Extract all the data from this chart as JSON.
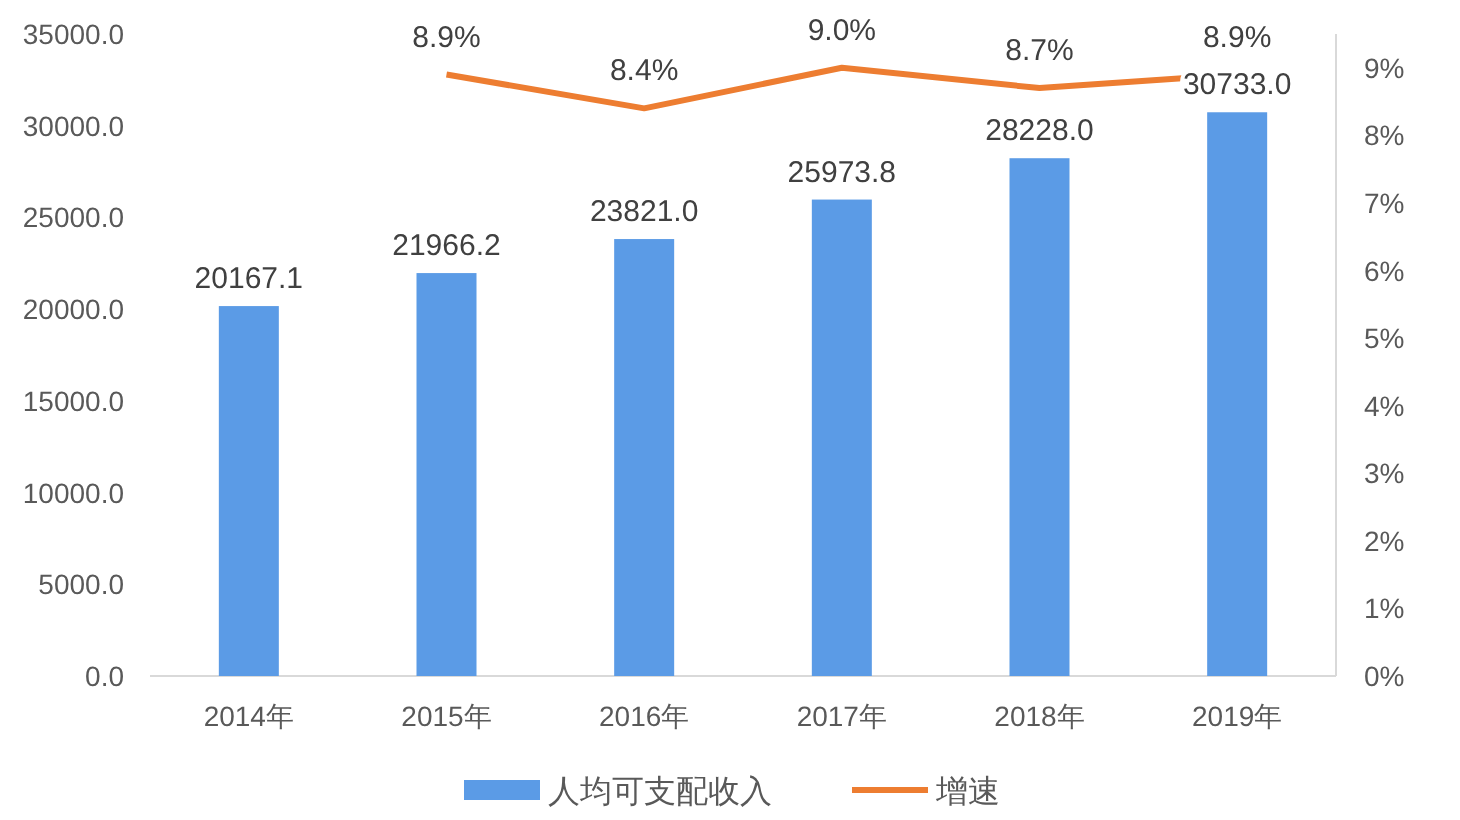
{
  "chart_data": {
    "type": "bar",
    "categories": [
      "2014年",
      "2015年",
      "2016年",
      "2017年",
      "2018年",
      "2019年"
    ],
    "series": [
      {
        "name": "人均可支配收入",
        "color": "#5b9be6",
        "values": [
          20167.1,
          21966.2,
          23821.0,
          25973.8,
          28228.0,
          30733.0
        ],
        "value_labels": [
          "20167.1",
          "21966.2",
          "23821.0",
          "25973.8",
          "28228.0",
          "30733.0"
        ]
      },
      {
        "name": "增速",
        "type": "line",
        "axis": "y2",
        "color": "#ed7d31",
        "marker": "none",
        "values": [
          null,
          8.9,
          8.4,
          9.0,
          8.7,
          8.9
        ],
        "value_labels": [
          null,
          "8.9%",
          "8.4%",
          "9.0%",
          "8.7%",
          "8.9%"
        ]
      }
    ],
    "ylim": [
      0,
      35000
    ],
    "yticks": [
      {
        "value": 0,
        "label": "0.0"
      },
      {
        "value": 5000,
        "label": "5000.0"
      },
      {
        "value": 10000,
        "label": "10000.0"
      },
      {
        "value": 15000,
        "label": "15000.0"
      },
      {
        "value": 20000,
        "label": "20000.0"
      },
      {
        "value": 25000,
        "label": "25000.0"
      },
      {
        "value": 30000,
        "label": "30000.0"
      },
      {
        "value": 35000,
        "label": "35000.0"
      }
    ],
    "y2lim": [
      0,
      9.5
    ],
    "y2ticks": [
      {
        "value": 0,
        "label": "0%"
      },
      {
        "value": 1,
        "label": "1%"
      },
      {
        "value": 2,
        "label": "2%"
      },
      {
        "value": 3,
        "label": "3%"
      },
      {
        "value": 4,
        "label": "4%"
      },
      {
        "value": 5,
        "label": "5%"
      },
      {
        "value": 6,
        "label": "6%"
      },
      {
        "value": 7,
        "label": "7%"
      },
      {
        "value": 8,
        "label": "8%"
      },
      {
        "value": 9,
        "label": "9%"
      }
    ],
    "legend": "bottom"
  }
}
